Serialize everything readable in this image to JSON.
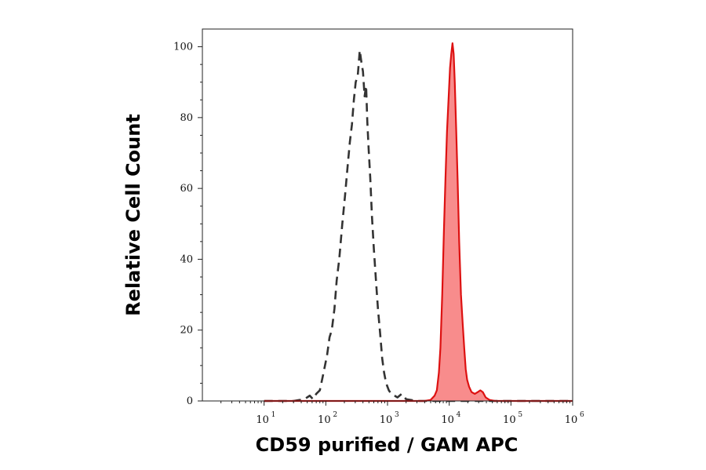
{
  "chart_data": {
    "type": "area",
    "title": "",
    "xlabel": "CD59 purified / GAM APC",
    "ylabel": "Relative Cell Count",
    "x_scale": "log10",
    "xlim": [
      1,
      1000000
    ],
    "ylim": [
      0,
      105
    ],
    "grid": false,
    "legend": "none",
    "x_ticks": [
      {
        "base": "10",
        "exp": "1",
        "value": 10
      },
      {
        "base": "10",
        "exp": "2",
        "value": 100
      },
      {
        "base": "10",
        "exp": "3",
        "value": 1000
      },
      {
        "base": "10",
        "exp": "4",
        "value": 10000
      },
      {
        "base": "10",
        "exp": "5",
        "value": 100000
      },
      {
        "base": "10",
        "exp": "6",
        "value": 1000000
      }
    ],
    "y_ticks": [
      0,
      20,
      40,
      60,
      80,
      100
    ],
    "series": [
      {
        "style": "dashed",
        "color": "#333333",
        "filled": false,
        "points": [
          [
            10,
            0
          ],
          [
            30,
            0
          ],
          [
            45,
            0.5
          ],
          [
            55,
            1.5
          ],
          [
            62,
            0.5
          ],
          [
            70,
            2
          ],
          [
            80,
            3
          ],
          [
            92,
            8
          ],
          [
            105,
            13
          ],
          [
            115,
            18
          ],
          [
            125,
            20
          ],
          [
            138,
            26
          ],
          [
            150,
            34
          ],
          [
            165,
            40
          ],
          [
            185,
            50
          ],
          [
            205,
            58
          ],
          [
            225,
            66
          ],
          [
            245,
            73
          ],
          [
            265,
            78
          ],
          [
            285,
            85
          ],
          [
            305,
            90
          ],
          [
            330,
            92
          ],
          [
            355,
            99
          ],
          [
            375,
            96
          ],
          [
            400,
            93
          ],
          [
            425,
            86
          ],
          [
            450,
            89
          ],
          [
            470,
            79
          ],
          [
            495,
            71
          ],
          [
            525,
            63
          ],
          [
            560,
            52
          ],
          [
            600,
            43
          ],
          [
            650,
            34
          ],
          [
            700,
            26
          ],
          [
            760,
            19
          ],
          [
            820,
            12
          ],
          [
            880,
            8
          ],
          [
            950,
            5
          ],
          [
            1050,
            3
          ],
          [
            1150,
            2
          ],
          [
            1300,
            1.5
          ],
          [
            1450,
            1
          ],
          [
            1700,
            2
          ],
          [
            2000,
            0.5
          ],
          [
            3000,
            0
          ],
          [
            1000000,
            0
          ]
        ]
      },
      {
        "style": "solid",
        "color": "#dd1111",
        "fill": "#f88c8c",
        "filled": true,
        "points": [
          [
            10,
            0
          ],
          [
            4000,
            0
          ],
          [
            5000,
            0.3
          ],
          [
            5800,
            1.5
          ],
          [
            6300,
            3
          ],
          [
            6800,
            8
          ],
          [
            7200,
            15
          ],
          [
            7700,
            30
          ],
          [
            8200,
            48
          ],
          [
            8700,
            63
          ],
          [
            9200,
            76
          ],
          [
            9800,
            86
          ],
          [
            10300,
            94
          ],
          [
            10800,
            98
          ],
          [
            11300,
            101
          ],
          [
            11800,
            98
          ],
          [
            12300,
            90
          ],
          [
            13000,
            76
          ],
          [
            13700,
            62
          ],
          [
            14500,
            45
          ],
          [
            15500,
            30
          ],
          [
            16500,
            22
          ],
          [
            17500,
            15
          ],
          [
            18500,
            9
          ],
          [
            19500,
            6
          ],
          [
            21000,
            4
          ],
          [
            23000,
            2.5
          ],
          [
            26000,
            2
          ],
          [
            29000,
            2.5
          ],
          [
            32000,
            3
          ],
          [
            35000,
            2.5
          ],
          [
            39000,
            1
          ],
          [
            45000,
            0.3
          ],
          [
            55000,
            0
          ],
          [
            1000000,
            0
          ]
        ]
      }
    ]
  }
}
